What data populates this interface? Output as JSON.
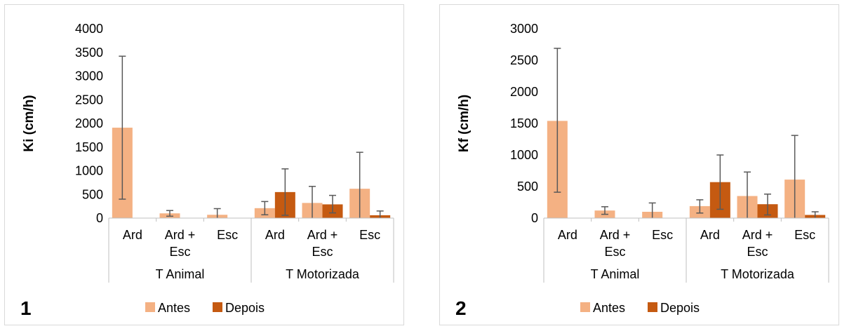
{
  "legend": {
    "antes": "Antes",
    "depois": "Depois"
  },
  "colors": {
    "antes": "#F4B183",
    "depois": "#C55A11",
    "errorbar": "#595959",
    "axis": "#bfbfbf"
  },
  "chart_data": [
    {
      "type": "bar",
      "panel_number": "1",
      "ylabel": "Ki (cm/h)",
      "ylim": [
        0,
        4000
      ],
      "yticks": [
        0,
        500,
        1000,
        1500,
        2000,
        2500,
        3000,
        3500,
        4000
      ],
      "groups": [
        {
          "label": "T Animal",
          "categories": [
            [
              "Ard"
            ],
            [
              "Ard +",
              "Esc"
            ],
            [
              "Esc"
            ]
          ]
        },
        {
          "label": "T Motorizada",
          "categories": [
            [
              "Ard"
            ],
            [
              "Ard +",
              "Esc"
            ],
            [
              "Esc"
            ]
          ]
        }
      ],
      "series": [
        {
          "name": "Antes",
          "values": [
            1910,
            100,
            70,
            210,
            320,
            620
          ],
          "err_low": [
            400,
            40,
            0,
            70,
            0,
            0
          ],
          "err_high": [
            3420,
            160,
            200,
            350,
            670,
            1390
          ]
        },
        {
          "name": "Depois",
          "values": [
            0,
            0,
            0,
            550,
            290,
            60
          ],
          "err_low": [
            0,
            0,
            0,
            60,
            110,
            0
          ],
          "err_high": [
            0,
            0,
            0,
            1040,
            480,
            150
          ]
        }
      ],
      "legend_position": "bottom"
    },
    {
      "type": "bar",
      "panel_number": "2",
      "ylabel": "Kf (cm/h)",
      "ylim": [
        0,
        3000
      ],
      "yticks": [
        0,
        500,
        1000,
        1500,
        2000,
        2500,
        3000
      ],
      "groups": [
        {
          "label": "T Animal",
          "categories": [
            [
              "Ard"
            ],
            [
              "Ard +",
              "Esc"
            ],
            [
              "Esc"
            ]
          ]
        },
        {
          "label": "T Motorizada",
          "categories": [
            [
              "Ard"
            ],
            [
              "Ard +",
              "Esc"
            ],
            [
              "Esc"
            ]
          ]
        }
      ],
      "series": [
        {
          "name": "Antes",
          "values": [
            1540,
            120,
            100,
            190,
            350,
            610
          ],
          "err_low": [
            410,
            60,
            0,
            80,
            0,
            0
          ],
          "err_high": [
            2690,
            180,
            240,
            290,
            730,
            1310
          ]
        },
        {
          "name": "Depois",
          "values": [
            0,
            0,
            0,
            570,
            220,
            50
          ],
          "err_low": [
            0,
            0,
            0,
            140,
            50,
            0
          ],
          "err_high": [
            0,
            0,
            0,
            1000,
            380,
            100
          ]
        }
      ],
      "legend_position": "bottom"
    }
  ]
}
